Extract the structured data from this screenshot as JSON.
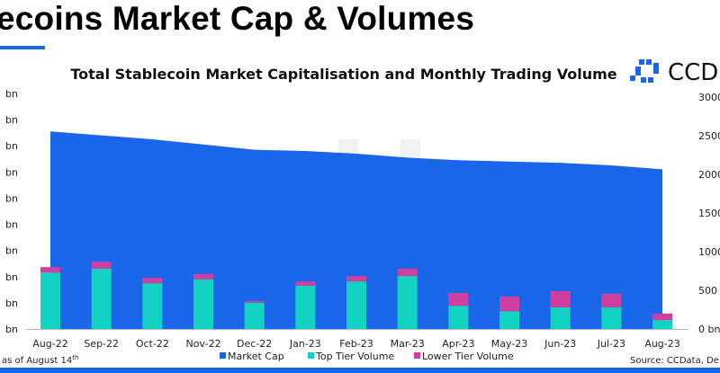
{
  "page": {
    "heading": "ecoins Market Cap & Volumes",
    "footnote": "as of August 14",
    "footnote_sup": "th",
    "source": "Source: CCData, De",
    "logo_text": "CCD"
  },
  "colors": {
    "market_cap": "#1a66e8",
    "top_tier": "#12d3c2",
    "lower_tier": "#d03ea0",
    "accent": "#1a66e8"
  },
  "chart_data": {
    "type": "bar",
    "title": "Total Stablecoin Market Capitalisation and Monthly Trading Volume",
    "categories": [
      "Aug-22",
      "Sep-22",
      "Oct-22",
      "Nov-22",
      "Dec-22",
      "Jan-23",
      "Feb-23",
      "Mar-23",
      "Apr-23",
      "May-23",
      "Jun-23",
      "Jul-23",
      "Aug-23"
    ],
    "left_axis": {
      "unit": "bn",
      "ylim": [
        0,
        180
      ],
      "tick_labels": [
        "bn",
        "bn",
        "bn",
        "bn",
        "bn",
        "bn",
        "bn",
        "bn",
        "bn",
        "bn"
      ],
      "ticks": [
        0,
        20,
        40,
        60,
        80,
        100,
        120,
        140,
        160,
        180
      ]
    },
    "right_axis": {
      "unit": "bn",
      "ylim": [
        0,
        3000
      ],
      "tick_labels": [
        "0 bn",
        "500",
        "1000",
        "1500",
        "2000",
        "2500",
        "3000"
      ],
      "ticks": [
        0,
        500,
        1000,
        1500,
        2000,
        2500,
        3000
      ]
    },
    "series": [
      {
        "name": "Market Cap",
        "type": "area",
        "axis": "left",
        "values": [
          151,
          148,
          145,
          141,
          137,
          136,
          134,
          131,
          129,
          128,
          127,
          125,
          122
        ]
      },
      {
        "name": "Top Tier Volume",
        "type": "stacked-bar",
        "axis": "right",
        "values": [
          730,
          780,
          590,
          640,
          340,
          560,
          615,
          685,
          300,
          230,
          280,
          280,
          115
        ]
      },
      {
        "name": "Lower Tier Volume",
        "type": "stacked-bar",
        "axis": "right",
        "values": [
          70,
          90,
          70,
          70,
          20,
          55,
          70,
          95,
          165,
          190,
          210,
          175,
          85
        ]
      }
    ],
    "legend": "bottom-center",
    "grid": false
  }
}
